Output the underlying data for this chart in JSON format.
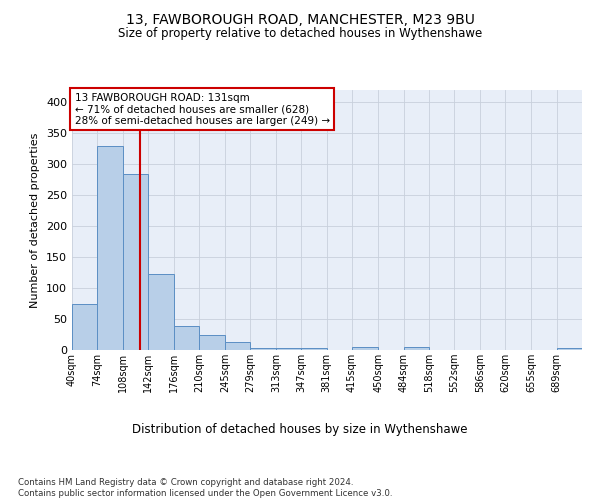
{
  "title_line1": "13, FAWBOROUGH ROAD, MANCHESTER, M23 9BU",
  "title_line2": "Size of property relative to detached houses in Wythenshawe",
  "xlabel": "Distribution of detached houses by size in Wythenshawe",
  "ylabel": "Number of detached properties",
  "footnote": "Contains HM Land Registry data © Crown copyright and database right 2024.\nContains public sector information licensed under the Open Government Licence v3.0.",
  "annotation_line1": "13 FAWBOROUGH ROAD: 131sqm",
  "annotation_line2": "← 71% of detached houses are smaller (628)",
  "annotation_line3": "28% of semi-detached houses are larger (249) →",
  "property_size": 131,
  "bin_edges": [
    40,
    74,
    108,
    142,
    176,
    210,
    245,
    279,
    313,
    347,
    381,
    415,
    450,
    484,
    518,
    552,
    586,
    620,
    655,
    689,
    723
  ],
  "bar_heights": [
    75,
    330,
    284,
    122,
    38,
    25,
    13,
    4,
    4,
    4,
    0,
    5,
    0,
    5,
    0,
    0,
    0,
    0,
    0,
    3
  ],
  "bar_color": "#b8cfe8",
  "bar_edge_color": "#5b8ec4",
  "vline_color": "#cc0000",
  "vline_x": 131,
  "annotation_box_edge_color": "#cc0000",
  "background_color": "#ffffff",
  "axes_facecolor": "#e8eef8",
  "grid_color": "#c8d0dc",
  "ylim": [
    0,
    420
  ],
  "yticks": [
    0,
    50,
    100,
    150,
    200,
    250,
    300,
    350,
    400
  ]
}
